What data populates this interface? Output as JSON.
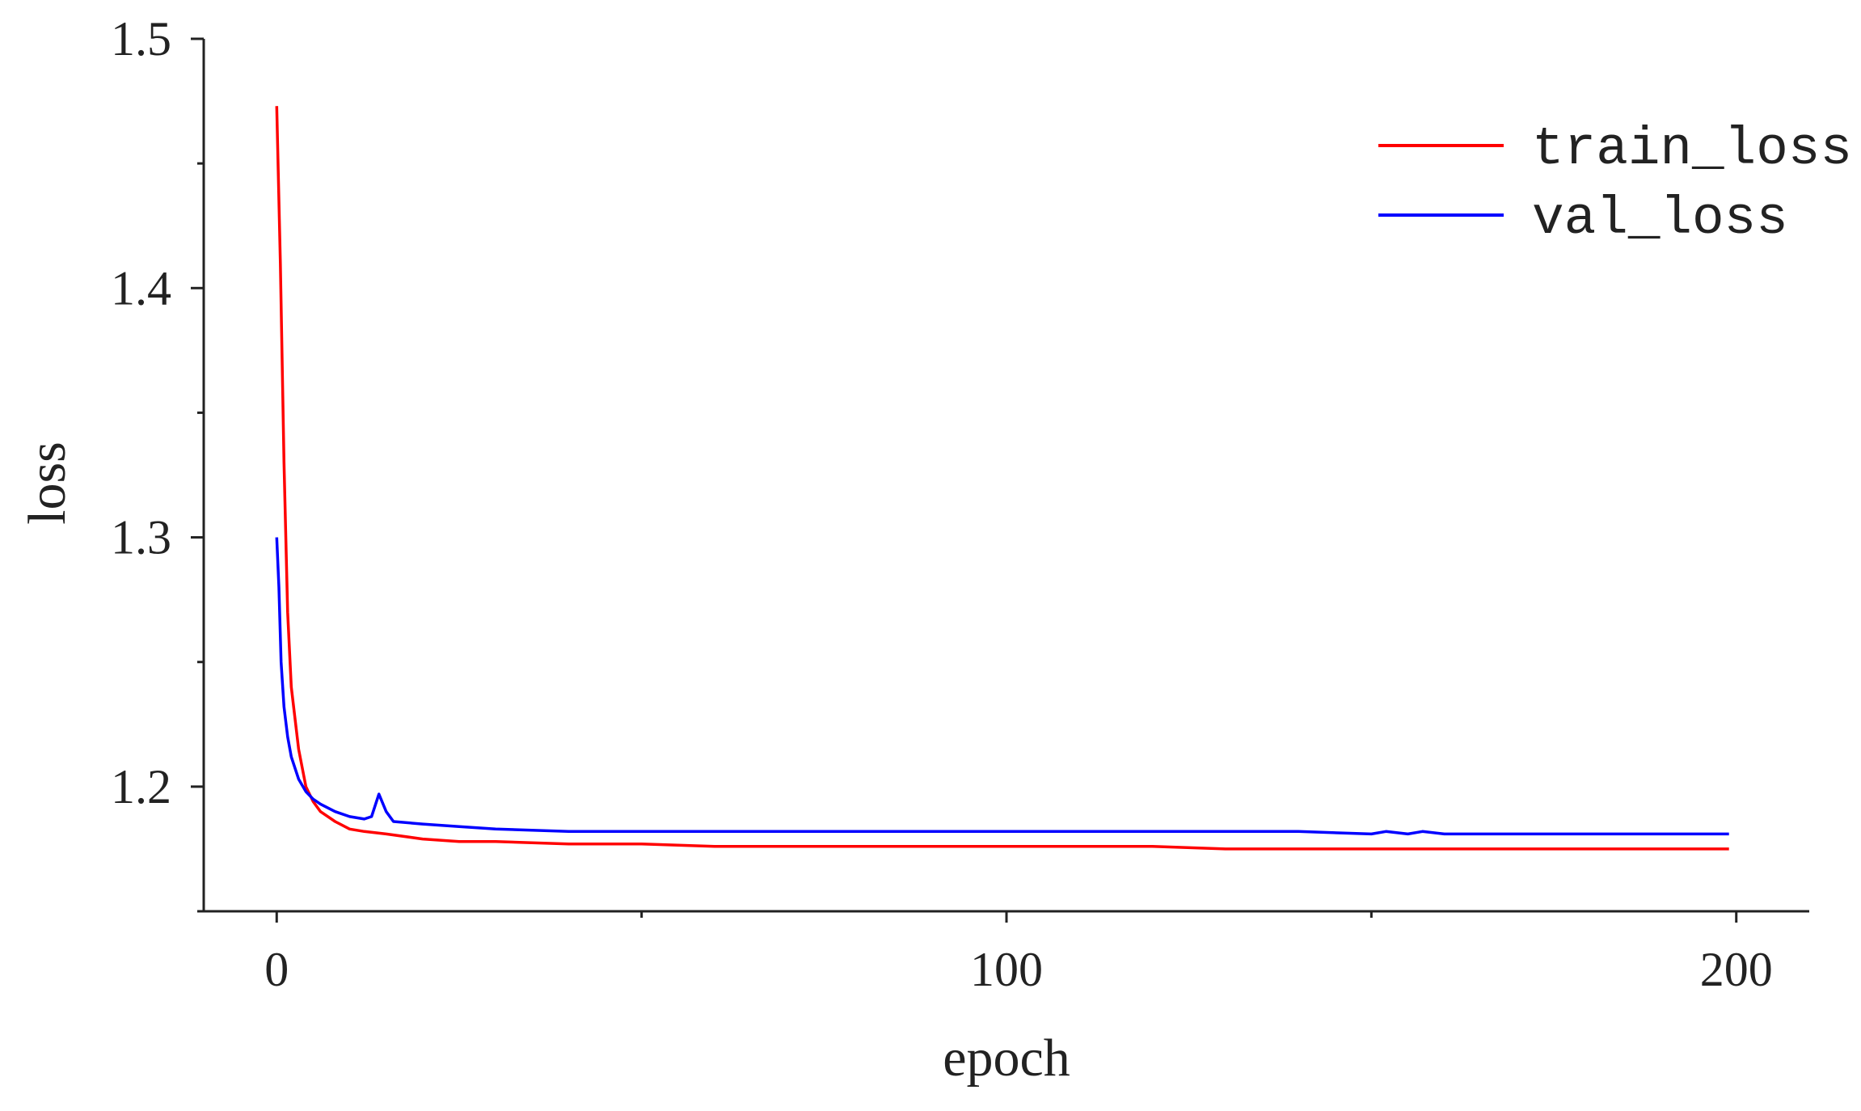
{
  "chart_data": {
    "type": "line",
    "title": "",
    "xlabel": "epoch",
    "ylabel": "loss",
    "xlim": [
      -10,
      210
    ],
    "ylim": [
      1.15,
      1.5
    ],
    "x_ticks": [
      0,
      100,
      200
    ],
    "x_tick_labels": [
      "0",
      "100",
      "200"
    ],
    "y_ticks": [
      1.2,
      1.3,
      1.4,
      1.5
    ],
    "y_tick_labels": [
      "1.2",
      "1.3",
      "1.4",
      "1.5"
    ],
    "grid": false,
    "legend_position": "top-right",
    "series": [
      {
        "name": "train_loss",
        "color": "#ff0000",
        "x": [
          0,
          0.5,
          1,
          1.5,
          2,
          3,
          4,
          5,
          6,
          8,
          10,
          12,
          15,
          20,
          25,
          30,
          40,
          50,
          60,
          80,
          100,
          120,
          130,
          140,
          150,
          160,
          170,
          180,
          190,
          199
        ],
        "y": [
          1.473,
          1.41,
          1.33,
          1.27,
          1.24,
          1.215,
          1.2,
          1.194,
          1.19,
          1.186,
          1.183,
          1.182,
          1.181,
          1.179,
          1.178,
          1.178,
          1.177,
          1.177,
          1.176,
          1.176,
          1.176,
          1.176,
          1.175,
          1.175,
          1.175,
          1.175,
          1.175,
          1.175,
          1.175,
          1.175
        ]
      },
      {
        "name": "val_loss",
        "color": "#0000ff",
        "x": [
          0,
          0.3,
          0.6,
          1,
          1.5,
          2,
          3,
          4,
          5,
          6,
          8,
          10,
          12,
          13,
          14,
          15,
          16,
          20,
          25,
          30,
          40,
          50,
          60,
          80,
          100,
          120,
          140,
          150,
          152,
          155,
          157,
          160,
          170,
          180,
          190,
          199
        ],
        "y": [
          1.3,
          1.28,
          1.25,
          1.232,
          1.22,
          1.212,
          1.203,
          1.198,
          1.195,
          1.193,
          1.19,
          1.188,
          1.187,
          1.188,
          1.197,
          1.19,
          1.186,
          1.185,
          1.184,
          1.183,
          1.182,
          1.182,
          1.182,
          1.182,
          1.182,
          1.182,
          1.182,
          1.181,
          1.182,
          1.181,
          1.182,
          1.181,
          1.181,
          1.181,
          1.181,
          1.181
        ]
      }
    ]
  }
}
